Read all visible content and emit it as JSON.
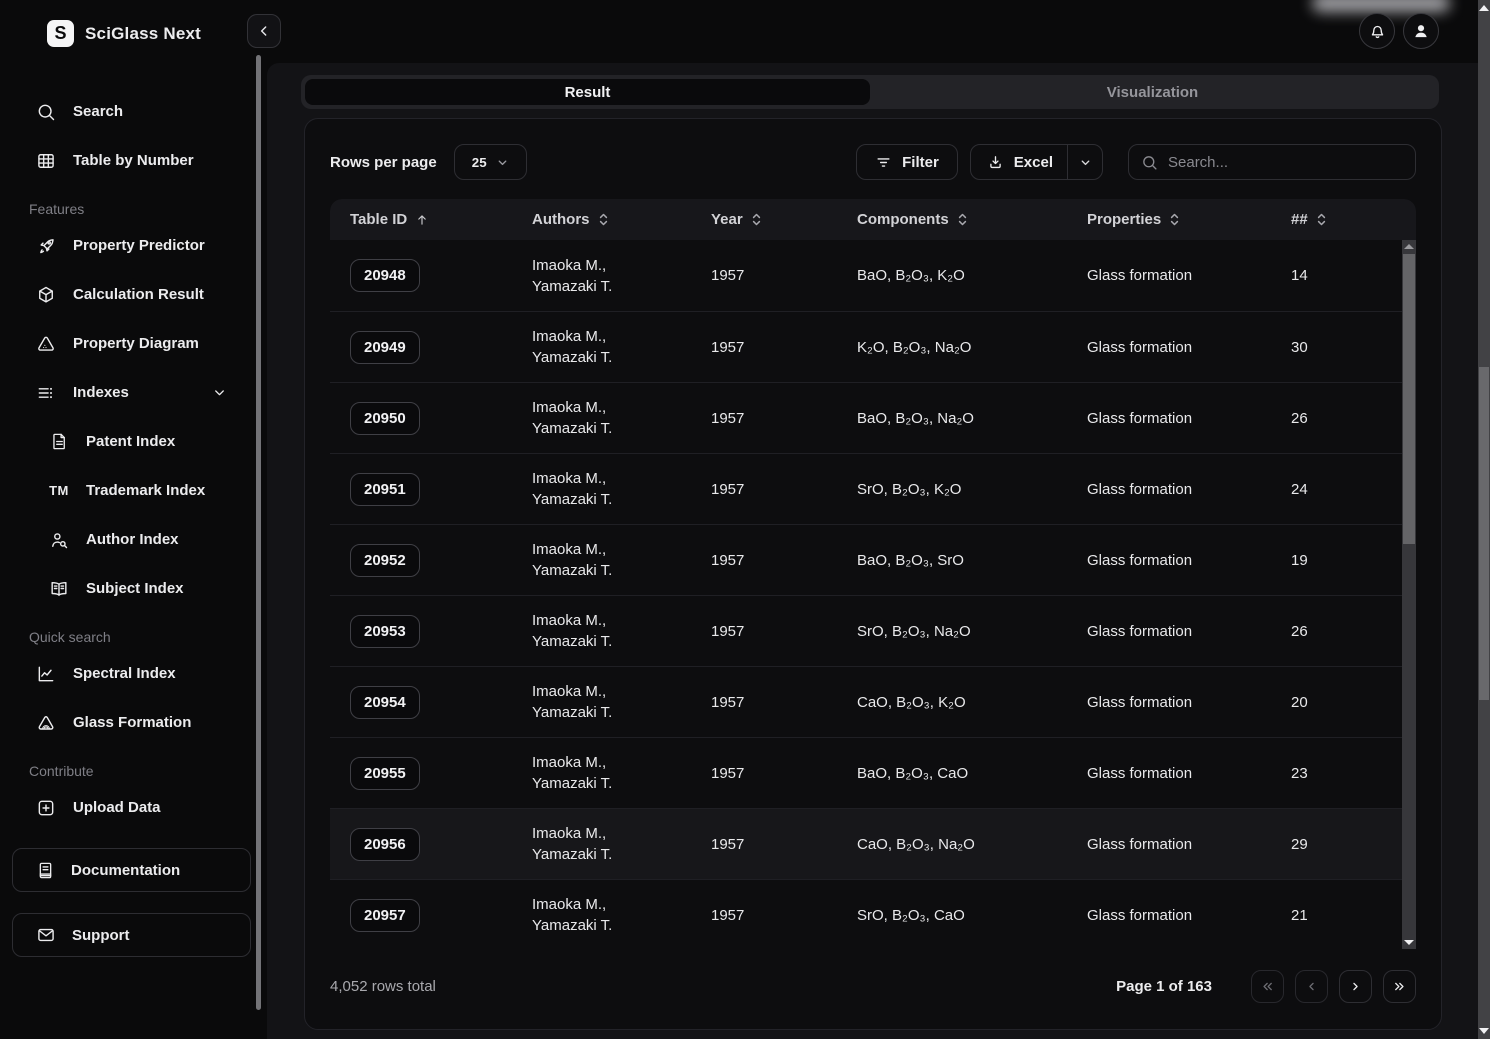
{
  "app": {
    "title": "SciGlass Next",
    "logo_letter": "S"
  },
  "sidebar": {
    "primary": [
      {
        "label": "Search",
        "icon": "search"
      },
      {
        "label": "Table by Number",
        "icon": "table"
      }
    ],
    "features_label": "Features",
    "features": [
      {
        "label": "Property Predictor",
        "icon": "rocket"
      },
      {
        "label": "Calculation Result",
        "icon": "cube"
      },
      {
        "label": "Property Diagram",
        "icon": "triangle"
      },
      {
        "label": "Indexes",
        "icon": "list",
        "expanded": true
      }
    ],
    "indexes_children": [
      {
        "label": "Patent Index",
        "icon": "file"
      },
      {
        "label": "Trademark Index",
        "icon": "tm"
      },
      {
        "label": "Author Index",
        "icon": "person-search"
      },
      {
        "label": "Subject Index",
        "icon": "book-open"
      }
    ],
    "quick_label": "Quick search",
    "quick": [
      {
        "label": "Spectral Index",
        "icon": "chart"
      },
      {
        "label": "Glass Formation",
        "icon": "glass"
      }
    ],
    "contribute_label": "Contribute",
    "contribute": [
      {
        "label": "Upload Data",
        "icon": "plus-square"
      }
    ],
    "footer_boxes": [
      {
        "label": "Documentation",
        "icon": "docs"
      },
      {
        "label": "Support",
        "icon": "mail"
      }
    ]
  },
  "tabs": {
    "result": "Result",
    "visualization": "Visualization"
  },
  "toolbar": {
    "rows_label": "Rows per page",
    "rows_value": "25",
    "filter_label": "Filter",
    "excel_label": "Excel",
    "search_placeholder": "Search..."
  },
  "table": {
    "columns": [
      {
        "label": "Table ID",
        "sort": "asc"
      },
      {
        "label": "Authors",
        "sort": "none"
      },
      {
        "label": "Year",
        "sort": "none"
      },
      {
        "label": "Components",
        "sort": "none"
      },
      {
        "label": "Properties",
        "sort": "none"
      },
      {
        "label": "##",
        "sort": "none"
      }
    ],
    "rows": [
      {
        "id": "20948",
        "authors": [
          "Imaoka M.,",
          "Yamazaki T."
        ],
        "year": "1957",
        "components": "BaO, B₂O₃, K₂O",
        "properties": "Glass formation",
        "count": "14",
        "highlighted": false
      },
      {
        "id": "20949",
        "authors": [
          "Imaoka M.,",
          "Yamazaki T."
        ],
        "year": "1957",
        "components": "K₂O, B₂O₃, Na₂O",
        "properties": "Glass formation",
        "count": "30",
        "highlighted": false
      },
      {
        "id": "20950",
        "authors": [
          "Imaoka M.,",
          "Yamazaki T."
        ],
        "year": "1957",
        "components": "BaO, B₂O₃, Na₂O",
        "properties": "Glass formation",
        "count": "26",
        "highlighted": false
      },
      {
        "id": "20951",
        "authors": [
          "Imaoka M.,",
          "Yamazaki T."
        ],
        "year": "1957",
        "components": "SrO, B₂O₃, K₂O",
        "properties": "Glass formation",
        "count": "24",
        "highlighted": false
      },
      {
        "id": "20952",
        "authors": [
          "Imaoka M.,",
          "Yamazaki T."
        ],
        "year": "1957",
        "components": "BaO, B₂O₃, SrO",
        "properties": "Glass formation",
        "count": "19",
        "highlighted": false
      },
      {
        "id": "20953",
        "authors": [
          "Imaoka M.,",
          "Yamazaki T."
        ],
        "year": "1957",
        "components": "SrO, B₂O₃, Na₂O",
        "properties": "Glass formation",
        "count": "26",
        "highlighted": false
      },
      {
        "id": "20954",
        "authors": [
          "Imaoka M.,",
          "Yamazaki T."
        ],
        "year": "1957",
        "components": "CaO, B₂O₃, K₂O",
        "properties": "Glass formation",
        "count": "20",
        "highlighted": false
      },
      {
        "id": "20955",
        "authors": [
          "Imaoka M.,",
          "Yamazaki T."
        ],
        "year": "1957",
        "components": "BaO, B₂O₃, CaO",
        "properties": "Glass formation",
        "count": "23",
        "highlighted": false
      },
      {
        "id": "20956",
        "authors": [
          "Imaoka M.,",
          "Yamazaki T."
        ],
        "year": "1957",
        "components": "CaO, B₂O₃, Na₂O",
        "properties": "Glass formation",
        "count": "29",
        "highlighted": true
      },
      {
        "id": "20957",
        "authors": [
          "Imaoka M.,",
          "Yamazaki T."
        ],
        "year": "1957",
        "components": "SrO, B₂O₃, CaO",
        "properties": "Glass formation",
        "count": "21",
        "highlighted": false
      }
    ]
  },
  "footer": {
    "total": "4,052 rows total",
    "page": "Page 1 of 163"
  },
  "colors": {
    "accent_bg": "#0a0a0b",
    "panel": "#0d0d0f",
    "segment": "#232327",
    "border": "#2e2e33"
  }
}
